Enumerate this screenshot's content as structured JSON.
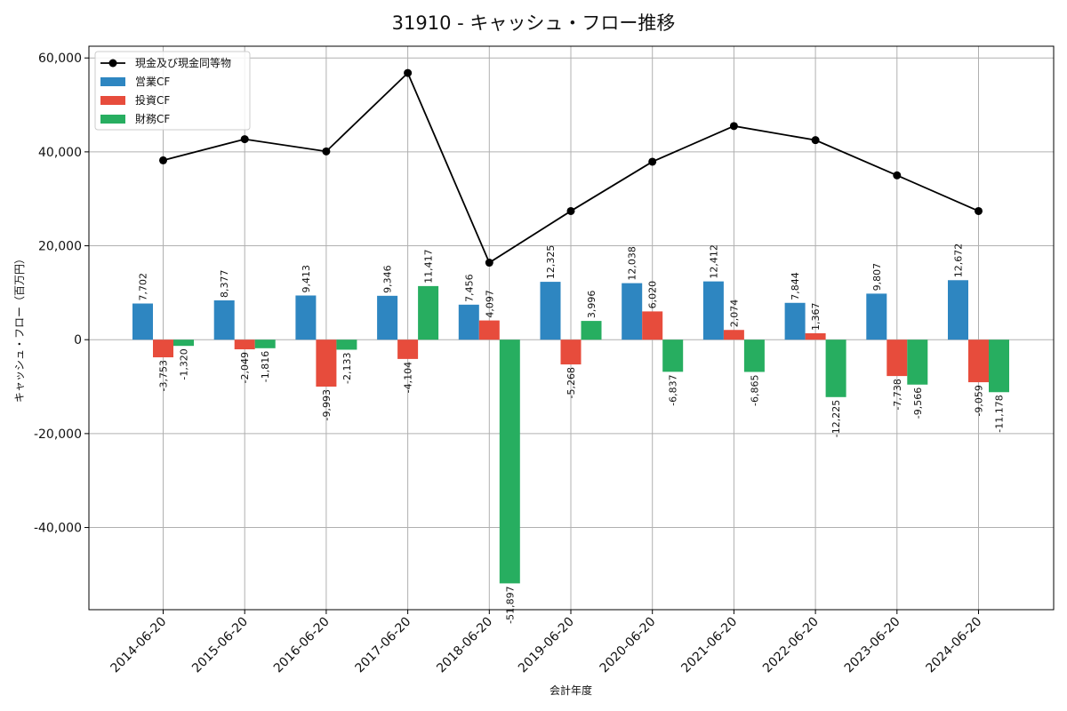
{
  "chart_data": {
    "type": "bar",
    "title": "31910 - キャッシュ・フロー推移",
    "xlabel": "会計年度",
    "ylabel": "キャッシュ・フロー（百万円）",
    "ylim": [
      -57500,
      62500
    ],
    "yticks": [
      -40000,
      -20000,
      0,
      20000,
      40000,
      60000
    ],
    "ytick_labels": [
      "-40,000",
      "-20,000",
      "0",
      "20,000",
      "40,000",
      "60,000"
    ],
    "grid": true,
    "legend_position": "top-left",
    "categories": [
      "2014-06-20",
      "2015-06-20",
      "2016-06-20",
      "2017-06-20",
      "2018-06-20",
      "2019-06-20",
      "2020-06-20",
      "2021-06-20",
      "2022-06-20",
      "2023-06-20",
      "2024-06-20"
    ],
    "series": [
      {
        "name": "営業CF",
        "kind": "bar",
        "color": "#2e86c1",
        "values": [
          7702,
          8377,
          9413,
          9346,
          7456,
          12325,
          12038,
          12412,
          7844,
          9807,
          12672
        ],
        "labels": [
          "7,702",
          "8,377",
          "9,413",
          "9,346",
          "7,456",
          "12,325",
          "12,038",
          "12,412",
          "7,844",
          "9,807",
          "12,672"
        ]
      },
      {
        "name": "投資CF",
        "kind": "bar",
        "color": "#e74c3c",
        "values": [
          -3753,
          -2049,
          -9993,
          -4104,
          4097,
          -5268,
          6020,
          2074,
          1367,
          -7738,
          -9059
        ],
        "labels": [
          "-3,753",
          "-2,049",
          "-9,993",
          "-4,104",
          "4,097",
          "-5,268",
          "6,020",
          "2,074",
          "1,367",
          "-7,738",
          "-9,059"
        ]
      },
      {
        "name": "財務CF",
        "kind": "bar",
        "color": "#27ae60",
        "values": [
          -1320,
          -1816,
          -2133,
          11417,
          -51897,
          3996,
          -6837,
          -6865,
          -12225,
          -9566,
          -11178
        ],
        "labels": [
          "-1,320",
          "-1,816",
          "-2,133",
          "11,417",
          "-51,897",
          "3,996",
          "-6,837",
          "-6,865",
          "-12,225",
          "-9,566",
          "-11,178"
        ]
      },
      {
        "name": "現金及び現金同等物",
        "kind": "line",
        "color": "#000000",
        "values": [
          38200,
          42700,
          40100,
          56800,
          16400,
          27400,
          37900,
          45500,
          42500,
          35000,
          27400
        ]
      }
    ]
  }
}
